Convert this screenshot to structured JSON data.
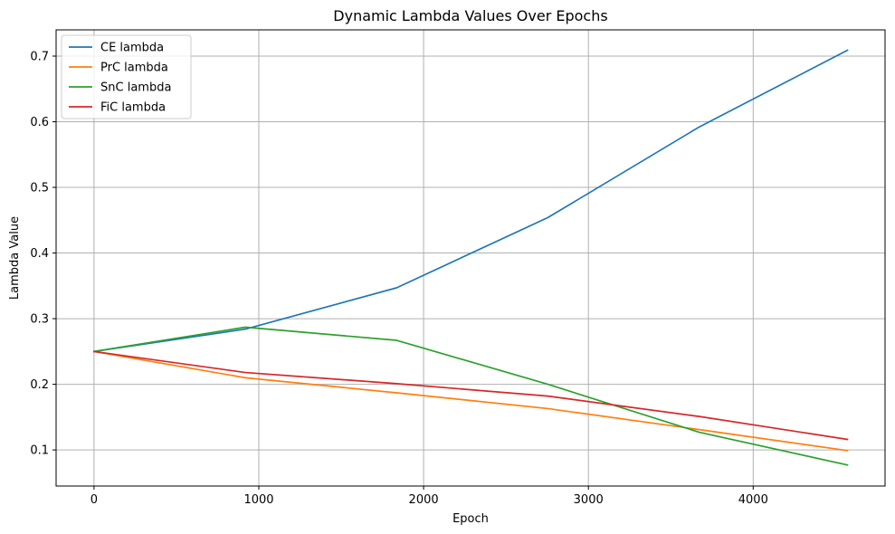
{
  "chart_data": {
    "type": "line",
    "title": "Dynamic Lambda Values Over Epochs",
    "xlabel": "Epoch",
    "ylabel": "Lambda Value",
    "xlim": [
      -230,
      4800
    ],
    "ylim": [
      0.045,
      0.74
    ],
    "xticks": [
      0,
      1000,
      2000,
      3000,
      4000
    ],
    "yticks": [
      0.1,
      0.2,
      0.3,
      0.4,
      0.5,
      0.6,
      0.7
    ],
    "grid": true,
    "legend_position": "upper-left",
    "x": [
      0,
      918,
      1836,
      2754,
      3672,
      4572
    ],
    "series": [
      {
        "name": "CE lambda",
        "color": "#1f77b4",
        "values": [
          0.25,
          0.284,
          0.347,
          0.454,
          0.592,
          0.709
        ]
      },
      {
        "name": "PrC lambda",
        "color": "#ff7f0e",
        "values": [
          0.25,
          0.21,
          0.187,
          0.163,
          0.131,
          0.099
        ]
      },
      {
        "name": "SnC lambda",
        "color": "#2ca02c",
        "values": [
          0.25,
          0.287,
          0.267,
          0.2,
          0.127,
          0.077
        ]
      },
      {
        "name": "FiC lambda",
        "color": "#d62728",
        "values": [
          0.25,
          0.218,
          0.201,
          0.182,
          0.151,
          0.116
        ]
      }
    ]
  }
}
